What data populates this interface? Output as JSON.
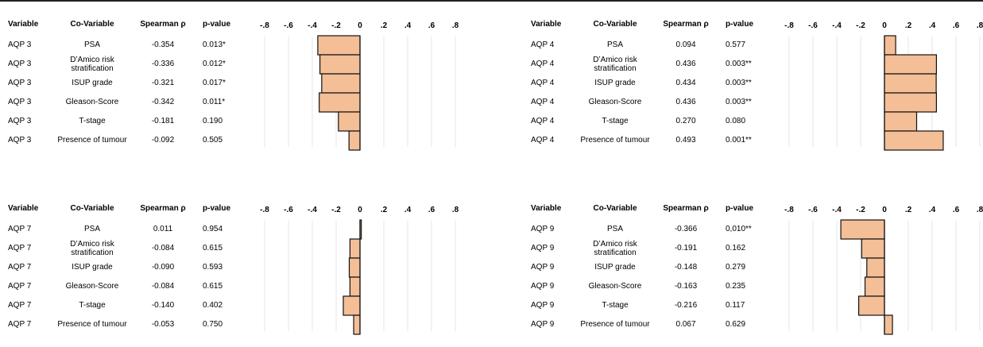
{
  "headers": {
    "variable": "Variable",
    "covariable": "Co-Variable",
    "spearman": "Spearman ρ",
    "pvalue": "p-value"
  },
  "axis_tick_labels": [
    "-.8",
    "-.6",
    "-.4",
    "-.2",
    "0",
    ".2",
    ".4",
    ".6",
    ".8"
  ],
  "colors": {
    "bar_fill": "#f4be96",
    "bar_stroke": "#111111",
    "grid": "#e4e4e4"
  },
  "chart_data": [
    {
      "type": "bar",
      "orientation": "horizontal",
      "variable": "AQP 3",
      "categories": [
        "PSA",
        "D'Amico risk stratification",
        "ISUP grade",
        "Gleason-Score",
        "T-stage",
        "Presence of tumour"
      ],
      "values": [
        -0.354,
        -0.336,
        -0.321,
        -0.342,
        -0.181,
        -0.092
      ],
      "rows": [
        {
          "variable": "AQP 3",
          "covariable": "PSA",
          "rho": "-0.354",
          "p": "0.013*"
        },
        {
          "variable": "AQP 3",
          "covariable": "D’Amico risk stratification",
          "rho": "-0.336",
          "p": "0.012*"
        },
        {
          "variable": "AQP 3",
          "covariable": "ISUP grade",
          "rho": "-0.321",
          "p": "0.017*"
        },
        {
          "variable": "AQP 3",
          "covariable": "Gleason-Score",
          "rho": "-0.342",
          "p": "0.011*"
        },
        {
          "variable": "AQP 3",
          "covariable": "T-stage",
          "rho": "-0.181",
          "p": "0.190"
        },
        {
          "variable": "AQP 3",
          "covariable": "Presence of tumour",
          "rho": "-0.092",
          "p": "0.505"
        }
      ],
      "xlim": [
        -0.8,
        0.8
      ],
      "grid": true
    },
    {
      "type": "bar",
      "orientation": "horizontal",
      "variable": "AQP 4",
      "categories": [
        "PSA",
        "D'Amico risk stratification",
        "ISUP grade",
        "Gleason-Score",
        "T-stage",
        "Presence of tumour"
      ],
      "values": [
        0.094,
        0.436,
        0.434,
        0.436,
        0.27,
        0.493
      ],
      "rows": [
        {
          "variable": "AQP 4",
          "covariable": "PSA",
          "rho": "0.094",
          "p": "0.577"
        },
        {
          "variable": "AQP 4",
          "covariable": "D’Amico risk stratification",
          "rho": "0.436",
          "p": "0.003**"
        },
        {
          "variable": "AQP 4",
          "covariable": "ISUP grade",
          "rho": "0.434",
          "p": "0.003**"
        },
        {
          "variable": "AQP 4",
          "covariable": "Gleason-Score",
          "rho": "0.436",
          "p": "0.003**"
        },
        {
          "variable": "AQP 4",
          "covariable": "T-stage",
          "rho": "0.270",
          "p": "0.080"
        },
        {
          "variable": "AQP 4",
          "covariable": "Presence of tumour",
          "rho": "0.493",
          "p": "0.001**"
        }
      ],
      "xlim": [
        -0.8,
        0.8
      ],
      "grid": true
    },
    {
      "type": "bar",
      "orientation": "horizontal",
      "variable": "AQP 7",
      "categories": [
        "PSA",
        "D'Amico risk stratification",
        "ISUP grade",
        "Gleason-Score",
        "T-stage",
        "Presence of tumour"
      ],
      "values": [
        0.011,
        -0.084,
        -0.09,
        -0.084,
        -0.14,
        -0.053
      ],
      "rows": [
        {
          "variable": "AQP 7",
          "covariable": "PSA",
          "rho": "0.011",
          "p": "0.954"
        },
        {
          "variable": "AQP 7",
          "covariable": "D’Amico risk stratification",
          "rho": "-0.084",
          "p": "0.615"
        },
        {
          "variable": "AQP 7",
          "covariable": "ISUP grade",
          "rho": "-0.090",
          "p": "0.593"
        },
        {
          "variable": "AQP 7",
          "covariable": "Gleason-Score",
          "rho": "-0.084",
          "p": "0.615"
        },
        {
          "variable": "AQP 7",
          "covariable": "T-stage",
          "rho": "-0.140",
          "p": "0.402"
        },
        {
          "variable": "AQP 7",
          "covariable": "Presence of tumour",
          "rho": "-0.053",
          "p": "0.750"
        }
      ],
      "xlim": [
        -0.8,
        0.8
      ],
      "grid": true
    },
    {
      "type": "bar",
      "orientation": "horizontal",
      "variable": "AQP 9",
      "categories": [
        "PSA",
        "D'Amico risk stratification",
        "ISUP grade",
        "Gleason-Score",
        "T-stage",
        "Presence of tumour"
      ],
      "values": [
        -0.366,
        -0.191,
        -0.148,
        -0.163,
        -0.216,
        0.067
      ],
      "rows": [
        {
          "variable": "AQP 9",
          "covariable": "PSA",
          "rho": "-0.366",
          "p": "0,010**"
        },
        {
          "variable": "AQP 9",
          "covariable": "D’Amico risk stratification",
          "rho": "-0.191",
          "p": "0.162"
        },
        {
          "variable": "AQP 9",
          "covariable": "ISUP grade",
          "rho": "-0.148",
          "p": "0.279"
        },
        {
          "variable": "AQP 9",
          "covariable": "Gleason-Score",
          "rho": "-0.163",
          "p": "0.235"
        },
        {
          "variable": "AQP 9",
          "covariable": "T-stage",
          "rho": "-0.216",
          "p": "0.117"
        },
        {
          "variable": "AQP 9",
          "covariable": "Presence of tumour",
          "rho": "0.067",
          "p": "0.629"
        }
      ],
      "xlim": [
        -0.8,
        0.8
      ],
      "grid": true
    }
  ]
}
